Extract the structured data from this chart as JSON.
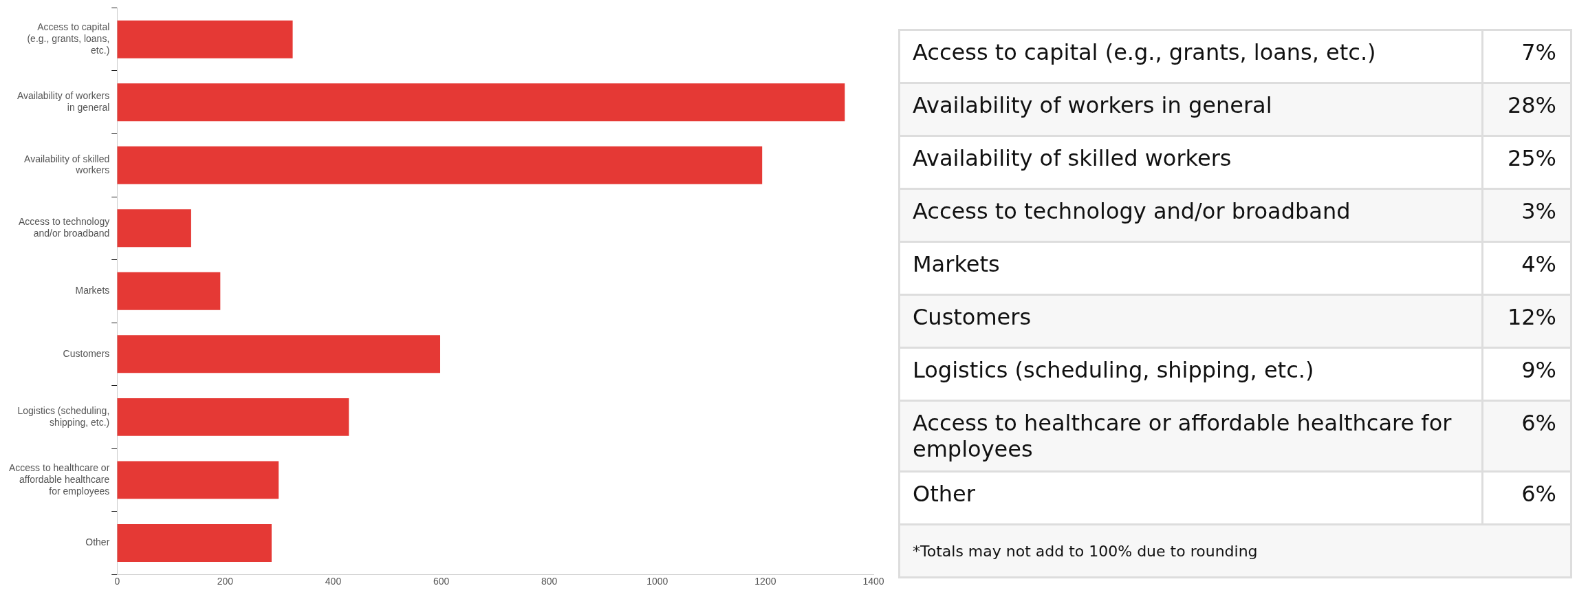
{
  "chart_data": [
    {
      "type": "bar",
      "orientation": "horizontal",
      "categories": [
        "Access to capital (e.g., grants, loans, etc.)",
        "Availability of workers in general",
        "Availability of skilled workers",
        "Access to technology and/or broadband",
        "Markets",
        "Customers",
        "Logistics (scheduling, shipping, etc.)",
        "Access to healthcare or affordable healthcare for employees",
        "Other"
      ],
      "values": [
        325,
        1347,
        1194,
        137,
        191,
        598,
        429,
        299,
        286
      ],
      "color": "#e53935",
      "xlim": [
        0,
        1400
      ],
      "xticks": [
        0,
        200,
        400,
        600,
        800,
        1000,
        1200,
        1400
      ],
      "legend": false
    },
    {
      "type": "other",
      "categories": [
        "Access to capital (e.g., grants, loans, etc.)",
        "Availability of workers in general",
        "Availability of skilled workers",
        "Access to technology and/or broadband",
        "Markets",
        "Customers",
        "Logistics (scheduling, shipping, etc.)",
        "Access to healthcare or affordable healthcare for employees",
        "Other"
      ],
      "value_labels": [
        "7%",
        "28%",
        "25%",
        "3%",
        "4%",
        "12%",
        "9%",
        "6%",
        "6%"
      ],
      "annotations": [
        "*Totals may not add to 100% due to rounding"
      ]
    }
  ]
}
